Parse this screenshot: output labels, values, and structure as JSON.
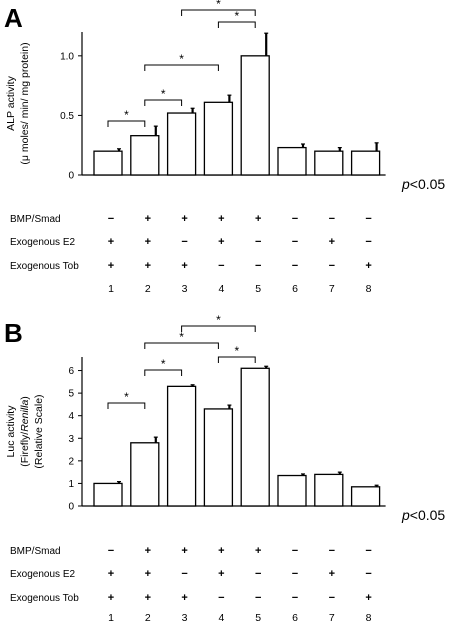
{
  "chart_data": [
    {
      "type": "bar",
      "panel": "A",
      "categories": [
        "1",
        "2",
        "3",
        "4",
        "5",
        "6",
        "7",
        "8"
      ],
      "values": [
        0.2,
        0.33,
        0.52,
        0.61,
        1.0,
        0.23,
        0.2,
        0.2
      ],
      "errors": [
        0.02,
        0.08,
        0.04,
        0.06,
        0.19,
        0.03,
        0.03,
        0.07
      ],
      "ylabel_lines": [
        "ALP activity",
        "(μ moles/   min/ mg protein)"
      ],
      "yticks": [
        0,
        0.5,
        1.0
      ],
      "ytick_labels": [
        "0",
        "0.5",
        "1.0"
      ],
      "ylim": [
        0,
        1.2
      ],
      "grid": false,
      "p_value_label": {
        "italic": "p",
        "rest": "<0.05"
      },
      "significance": [
        {
          "from": 1,
          "to": 2,
          "tier": 1
        },
        {
          "from": 2,
          "to": 3,
          "tier": 1
        },
        {
          "from": 2,
          "to": 4,
          "tier": 2
        },
        {
          "from": 4,
          "to": 5,
          "tier": 3
        },
        {
          "from": 3,
          "to": 5,
          "tier": 4
        }
      ],
      "star_symbol": "*",
      "treatment_rows": [
        {
          "label": "BMP/Smad",
          "marks": [
            "−",
            "+",
            "+",
            "+",
            "+",
            "−",
            "−",
            "−"
          ]
        },
        {
          "label": "Exogenous E2",
          "marks": [
            "+",
            "+",
            "−",
            "+",
            "−",
            "−",
            "+",
            "−"
          ]
        },
        {
          "label": "Exogenous Tob",
          "marks": [
            "+",
            "+",
            "+",
            "−",
            "−",
            "−",
            "−",
            "+"
          ]
        }
      ]
    },
    {
      "type": "bar",
      "panel": "B",
      "categories": [
        "1",
        "2",
        "3",
        "4",
        "5",
        "6",
        "7",
        "8"
      ],
      "values": [
        1.0,
        2.8,
        5.3,
        4.3,
        6.1,
        1.35,
        1.4,
        0.85
      ],
      "errors": [
        0.08,
        0.25,
        0.07,
        0.17,
        0.09,
        0.07,
        0.1,
        0.07
      ],
      "ylabel_lines": [
        "Luc activity",
        "(Firefly/Renilla)",
        "(Relative Scale)"
      ],
      "ylabel_line2_parts": {
        "normal": "(Firefly/",
        "italic": "Renilla",
        "end": ")"
      },
      "yticks": [
        0,
        1,
        2,
        3,
        4,
        5,
        6
      ],
      "ytick_labels": [
        "0",
        "1",
        "2",
        "3",
        "4",
        "5",
        "6"
      ],
      "ylim": [
        0,
        6.6
      ],
      "grid": false,
      "p_value_label": {
        "italic": "p",
        "rest": "<0.05"
      },
      "significance": [
        {
          "from": 1,
          "to": 2,
          "tier": 1
        },
        {
          "from": 2,
          "to": 3,
          "tier": 1
        },
        {
          "from": 4,
          "to": 5,
          "tier": 1
        },
        {
          "from": 2,
          "to": 4,
          "tier": 2
        },
        {
          "from": 3,
          "to": 5,
          "tier": 3
        }
      ],
      "star_symbol": "*",
      "treatment_rows": [
        {
          "label": "BMP/Smad",
          "marks": [
            "−",
            "+",
            "+",
            "+",
            "+",
            "−",
            "−",
            "−"
          ]
        },
        {
          "label": "Exogenous E2",
          "marks": [
            "+",
            "+",
            "−",
            "+",
            "−",
            "−",
            "+",
            "−"
          ]
        },
        {
          "label": "Exogenous Tob",
          "marks": [
            "+",
            "+",
            "+",
            "−",
            "−",
            "−",
            "−",
            "+"
          ]
        }
      ]
    }
  ],
  "colors": {
    "bar_fill": "#ffffff",
    "stroke": "#000000"
  }
}
